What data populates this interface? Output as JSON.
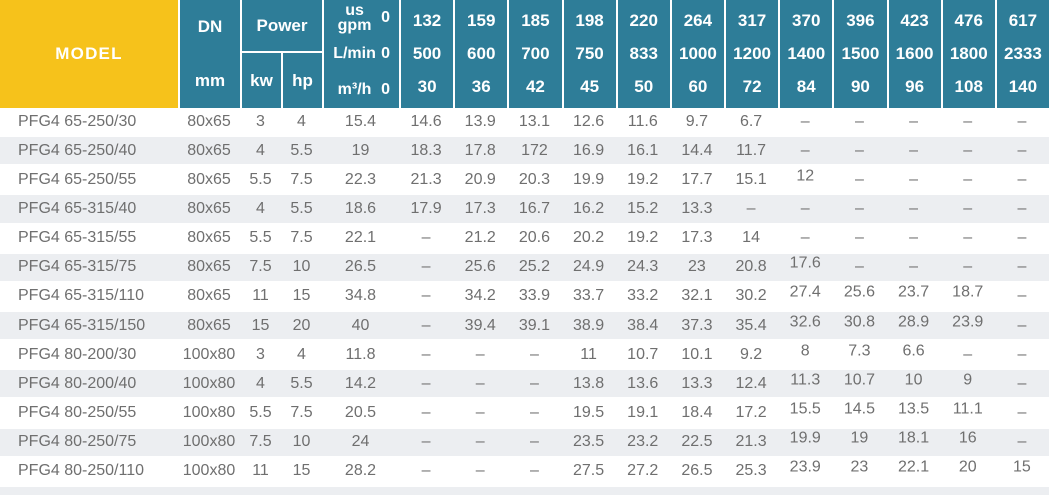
{
  "table": {
    "model_header": "MODEL",
    "dn_header": {
      "top": "DN",
      "bottom": "mm"
    },
    "power_header": {
      "label": "Power",
      "kw": "kw",
      "hp": "hp"
    },
    "units": {
      "row1_top": "us",
      "row1_bottom": "gpm",
      "row1_zero": "0",
      "row2_label": "L/min",
      "row2_zero": "0",
      "row3_label": "m³/h",
      "row3_zero": "0"
    },
    "flow_columns": [
      {
        "gpm": "132",
        "lmin": "500",
        "m3h": "30"
      },
      {
        "gpm": "159",
        "lmin": "600",
        "m3h": "36"
      },
      {
        "gpm": "185",
        "lmin": "700",
        "m3h": "42"
      },
      {
        "gpm": "198",
        "lmin": "750",
        "m3h": "45"
      },
      {
        "gpm": "220",
        "lmin": "833",
        "m3h": "50"
      },
      {
        "gpm": "264",
        "lmin": "1000",
        "m3h": "60"
      },
      {
        "gpm": "317",
        "lmin": "1200",
        "m3h": "72"
      },
      {
        "gpm": "370",
        "lmin": "1400",
        "m3h": "84"
      },
      {
        "gpm": "396",
        "lmin": "1500",
        "m3h": "90"
      },
      {
        "gpm": "423",
        "lmin": "1600",
        "m3h": "96"
      },
      {
        "gpm": "476",
        "lmin": "1800",
        "m3h": "108"
      },
      {
        "gpm": "617",
        "lmin": "2333",
        "m3h": "140"
      }
    ],
    "rows": [
      {
        "model": "PFG4 65-250/30",
        "dn": "80x65",
        "kw": "3",
        "hp": "4",
        "values": [
          "15.4",
          "14.6",
          "13.9",
          "13.1",
          "12.6",
          "11.6",
          "9.7",
          "6.7",
          "–",
          "–",
          "–",
          "–",
          "–"
        ]
      },
      {
        "model": "PFG4 65-250/40",
        "dn": "80x65",
        "kw": "4",
        "hp": "5.5",
        "values": [
          "19",
          "18.3",
          "17.8",
          "172",
          "16.9",
          "16.1",
          "14.4",
          "11.7",
          "–",
          "–",
          "–",
          "–",
          "–"
        ]
      },
      {
        "model": "PFG4 65-250/55",
        "dn": "80x65",
        "kw": "5.5",
        "hp": "7.5",
        "values": [
          "22.3",
          "21.3",
          "20.9",
          "20.3",
          "19.9",
          "19.2",
          "17.7",
          "15.1",
          "12",
          "–",
          "–",
          "–",
          "–"
        ]
      },
      {
        "model": "PFG4 65-315/40",
        "dn": "80x65",
        "kw": "4",
        "hp": "5.5",
        "values": [
          "18.6",
          "17.9",
          "17.3",
          "16.7",
          "16.2",
          "15.2",
          "13.3",
          "–",
          "–",
          "–",
          "–",
          "–",
          "–"
        ]
      },
      {
        "model": "PFG4 65-315/55",
        "dn": "80x65",
        "kw": "5.5",
        "hp": "7.5",
        "values": [
          "22.1",
          "–",
          "21.2",
          "20.6",
          "20.2",
          "19.2",
          "17.3",
          "14",
          "–",
          "–",
          "–",
          "–",
          "–"
        ]
      },
      {
        "model": "PFG4 65-315/75",
        "dn": "80x65",
        "kw": "7.5",
        "hp": "10",
        "values": [
          "26.5",
          "–",
          "25.6",
          "25.2",
          "24.9",
          "24.3",
          "23",
          "20.8",
          "17.6",
          "–",
          "–",
          "–",
          "–"
        ]
      },
      {
        "model": "PFG4 65-315/110",
        "dn": "80x65",
        "kw": "11",
        "hp": "15",
        "values": [
          "34.8",
          "–",
          "34.2",
          "33.9",
          "33.7",
          "33.2",
          "32.1",
          "30.2",
          "27.4",
          "25.6",
          "23.7",
          "18.7",
          "–"
        ]
      },
      {
        "model": "PFG4 65-315/150",
        "dn": "80x65",
        "kw": "15",
        "hp": "20",
        "values": [
          "40",
          "–",
          "39.4",
          "39.1",
          "38.9",
          "38.4",
          "37.3",
          "35.4",
          "32.6",
          "30.8",
          "28.9",
          "23.9",
          "–"
        ]
      },
      {
        "model": "PFG4 80-200/30",
        "dn": "100x80",
        "kw": "3",
        "hp": "4",
        "values": [
          "11.8",
          "–",
          "–",
          "–",
          "11",
          "10.7",
          "10.1",
          "9.2",
          "8",
          "7.3",
          "6.6",
          "–",
          "–"
        ]
      },
      {
        "model": "PFG4 80-200/40",
        "dn": "100x80",
        "kw": "4",
        "hp": "5.5",
        "values": [
          "14.2",
          "–",
          "–",
          "–",
          "13.8",
          "13.6",
          "13.3",
          "12.4",
          "11.3",
          "10.7",
          "10",
          "9",
          "–"
        ]
      },
      {
        "model": "PFG4 80-250/55",
        "dn": "100x80",
        "kw": "5.5",
        "hp": "7.5",
        "values": [
          "20.5",
          "–",
          "–",
          "–",
          "19.5",
          "19.1",
          "18.4",
          "17.2",
          "15.5",
          "14.5",
          "13.5",
          "11.1",
          "–"
        ]
      },
      {
        "model": "PFG4 80-250/75",
        "dn": "100x80",
        "kw": "7.5",
        "hp": "10",
        "values": [
          "24",
          "–",
          "–",
          "–",
          "23.5",
          "23.2",
          "22.5",
          "21.3",
          "19.9",
          "19",
          "18.1",
          "16",
          "–"
        ]
      },
      {
        "model": "PFG4 80-250/110",
        "dn": "100x80",
        "kw": "11",
        "hp": "15",
        "values": [
          "28.2",
          "–",
          "–",
          "–",
          "27.5",
          "27.2",
          "26.5",
          "25.3",
          "23.9",
          "23",
          "22.1",
          "20",
          "15"
        ]
      }
    ],
    "empty_value": "–"
  },
  "colors": {
    "header_teal": "#2e7d98",
    "model_yellow": "#f6c21b",
    "row_alt_gray": "#eceef1",
    "body_text": "#6f6f6f",
    "header_text": "#ffffff"
  }
}
